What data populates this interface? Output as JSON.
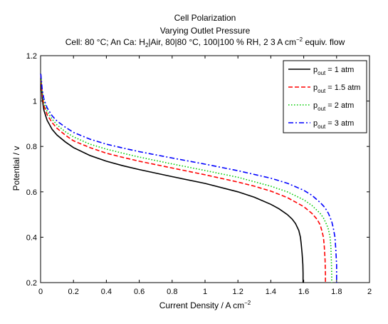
{
  "chart_data": {
    "type": "line",
    "title": [
      "Cell Polarization",
      "Varying Outlet Pressure"
    ],
    "subtitle": {
      "prefix": "Cell: 80 °C; An Ca: H",
      "sub": "2",
      "middle": "|Air, 80|80 °C, 100|100 % RH, 2 3 A cm",
      "sup": "−2",
      "suffix": " equiv. flow"
    },
    "xlabel": {
      "text": "Current Density / A cm",
      "sup": "−2"
    },
    "ylabel": "Potential / v",
    "xlim": [
      0,
      2
    ],
    "ylim": [
      0.2,
      1.2
    ],
    "xticks": [
      "0",
      "0.2",
      "0.4",
      "0.6",
      "0.8",
      "1",
      "1.2",
      "1.4",
      "1.6",
      "1.8",
      "2"
    ],
    "yticks": [
      "0.2",
      "0.4",
      "0.6",
      "0.8",
      "1",
      "1.2"
    ],
    "grid": false,
    "legend_position": "top-right",
    "series": [
      {
        "name": {
          "base": "p",
          "sub": "out",
          "tail": " = 1 atm"
        },
        "color": "#000000",
        "dash": "solid",
        "x": [
          0.001,
          0.005,
          0.01,
          0.02,
          0.04,
          0.07,
          0.1,
          0.15,
          0.2,
          0.3,
          0.4,
          0.5,
          0.6,
          0.8,
          1.0,
          1.2,
          1.3,
          1.4,
          1.45,
          1.5,
          1.53,
          1.55,
          1.57,
          1.58,
          1.585,
          1.59,
          1.595,
          1.596,
          1.596
        ],
        "y": [
          1.12,
          1.06,
          1.01,
          0.96,
          0.915,
          0.875,
          0.85,
          0.82,
          0.795,
          0.76,
          0.735,
          0.715,
          0.698,
          0.667,
          0.637,
          0.6,
          0.576,
          0.545,
          0.525,
          0.5,
          0.48,
          0.46,
          0.43,
          0.4,
          0.37,
          0.33,
          0.28,
          0.24,
          0.2
        ]
      },
      {
        "name": {
          "base": "p",
          "sub": "out",
          "tail": " = 1.5 atm"
        },
        "color": "#ff0000",
        "dash": "dashed",
        "x": [
          0.001,
          0.005,
          0.01,
          0.02,
          0.04,
          0.07,
          0.1,
          0.15,
          0.2,
          0.3,
          0.4,
          0.5,
          0.6,
          0.8,
          1.0,
          1.2,
          1.3,
          1.4,
          1.5,
          1.6,
          1.65,
          1.68,
          1.7,
          1.71,
          1.72,
          1.725,
          1.73,
          1.732,
          1.732
        ],
        "y": [
          1.12,
          1.07,
          1.03,
          0.98,
          0.94,
          0.905,
          0.88,
          0.85,
          0.825,
          0.795,
          0.77,
          0.752,
          0.735,
          0.705,
          0.675,
          0.643,
          0.625,
          0.603,
          0.575,
          0.535,
          0.505,
          0.48,
          0.455,
          0.43,
          0.4,
          0.36,
          0.3,
          0.24,
          0.2
        ]
      },
      {
        "name": {
          "base": "p",
          "sub": "out",
          "tail": " = 2 atm"
        },
        "color": "#00cc00",
        "dash": "dotted",
        "x": [
          0.001,
          0.005,
          0.01,
          0.02,
          0.04,
          0.07,
          0.1,
          0.15,
          0.2,
          0.3,
          0.4,
          0.5,
          0.6,
          0.8,
          1.0,
          1.2,
          1.4,
          1.5,
          1.6,
          1.65,
          1.7,
          1.72,
          1.74,
          1.75,
          1.76,
          1.765,
          1.768,
          1.77,
          1.77
        ],
        "y": [
          1.12,
          1.08,
          1.04,
          0.995,
          0.955,
          0.92,
          0.895,
          0.865,
          0.842,
          0.81,
          0.788,
          0.77,
          0.753,
          0.723,
          0.694,
          0.664,
          0.625,
          0.6,
          0.565,
          0.54,
          0.505,
          0.485,
          0.455,
          0.435,
          0.4,
          0.36,
          0.3,
          0.24,
          0.2
        ]
      },
      {
        "name": {
          "base": "p",
          "sub": "out",
          "tail": " = 3 atm"
        },
        "color": "#0000ff",
        "dash": "dashdot",
        "x": [
          0.001,
          0.005,
          0.01,
          0.02,
          0.04,
          0.07,
          0.1,
          0.15,
          0.2,
          0.3,
          0.4,
          0.5,
          0.6,
          0.8,
          1.0,
          1.2,
          1.4,
          1.5,
          1.6,
          1.65,
          1.7,
          1.73,
          1.75,
          1.77,
          1.78,
          1.79,
          1.795,
          1.8,
          1.8
        ],
        "y": [
          1.12,
          1.09,
          1.05,
          1.01,
          0.97,
          0.935,
          0.912,
          0.885,
          0.862,
          0.832,
          0.81,
          0.793,
          0.777,
          0.749,
          0.722,
          0.693,
          0.66,
          0.638,
          0.607,
          0.585,
          0.553,
          0.53,
          0.505,
          0.47,
          0.44,
          0.4,
          0.35,
          0.28,
          0.2
        ]
      }
    ]
  }
}
